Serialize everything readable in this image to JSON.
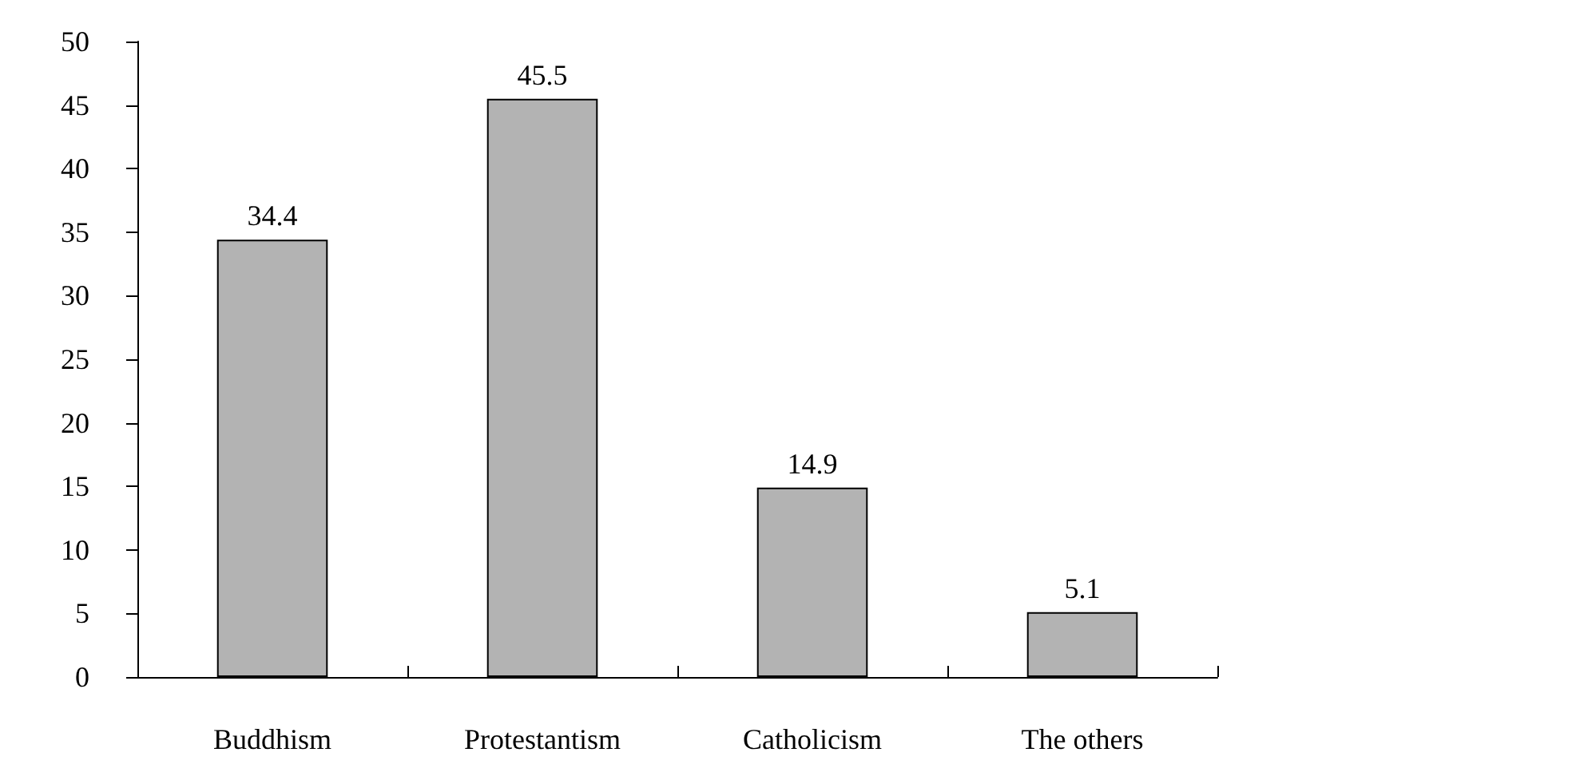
{
  "chart_data": {
    "type": "bar",
    "categories": [
      "Buddhism",
      "Protestantism",
      "Catholicism",
      "The others"
    ],
    "values": [
      34.4,
      45.5,
      14.9,
      5.1
    ],
    "color": "#b3b3b3",
    "ylim": [
      0,
      50
    ],
    "yticks": [
      0,
      5,
      10,
      15,
      20,
      25,
      30,
      35,
      40,
      45,
      50
    ],
    "grid": false,
    "data_labels": true
  }
}
